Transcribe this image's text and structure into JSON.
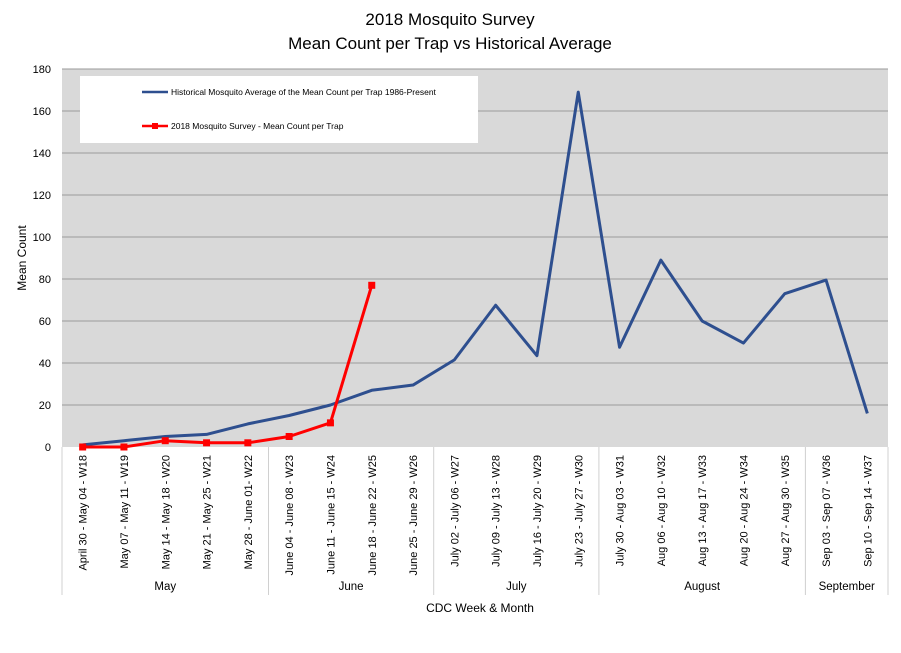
{
  "chart_data": {
    "type": "line",
    "title": "2018 Mosquito Survey",
    "subtitle": "Mean Count per Trap vs Historical Average",
    "xlabel": "CDC Week & Month",
    "ylabel": "Mean Count",
    "ylim": [
      0,
      180
    ],
    "yticks": [
      0,
      20,
      40,
      60,
      80,
      100,
      120,
      140,
      160,
      180
    ],
    "grid": true,
    "legend_position": "top-left",
    "categories": [
      "April 30 - May 04 - W18",
      "May 07 - May 11 - W19",
      "May 14 - May 18 - W20",
      "May 21 - May 25 - W21",
      "May 28 - June 01- W22",
      "June 04 - June 08 - W23",
      "June 11 - June 15 - W24",
      "June 18 - June 22 - W25",
      "June 25 - June 29 - W26",
      "July 02 - July 06 - W27",
      "July 09 - July 13 - W28",
      "July 16 - July 20 - W29",
      "July 23 - July 27 - W30",
      "July 30 - Aug 03 - W31",
      "Aug 06 - Aug 10 - W32",
      "Aug 13 - Aug 17 - W33",
      "Aug 20 - Aug 24 - W34",
      "Aug 27 - Aug 30 - W35",
      "Sep 03 - Sep 07 - W36",
      "Sep 10 - Sep 14 - W37"
    ],
    "month_groups": [
      {
        "label": "May",
        "start": 0,
        "end": 4
      },
      {
        "label": "June",
        "start": 5,
        "end": 8
      },
      {
        "label": "July",
        "start": 9,
        "end": 12
      },
      {
        "label": "August",
        "start": 13,
        "end": 17
      },
      {
        "label": "September",
        "start": 18,
        "end": 19
      }
    ],
    "series": [
      {
        "name": "Historical Mosquito Average of the Mean Count per Trap 1986-Present",
        "color": "#2E4F8F",
        "marker": "none",
        "values": [
          1,
          3,
          5,
          6,
          11,
          15,
          20,
          27,
          29.5,
          41.5,
          67.5,
          43.5,
          169,
          47.5,
          89,
          60,
          49.5,
          73,
          79.5,
          16
        ]
      },
      {
        "name": "2018 Mosquito Survey - Mean Count per Trap",
        "color": "#FF0000",
        "marker": "square",
        "values": [
          0,
          0,
          3,
          2,
          2,
          5,
          11.5,
          77,
          null,
          null,
          null,
          null,
          null,
          null,
          null,
          null,
          null,
          null,
          null,
          null
        ]
      }
    ]
  }
}
